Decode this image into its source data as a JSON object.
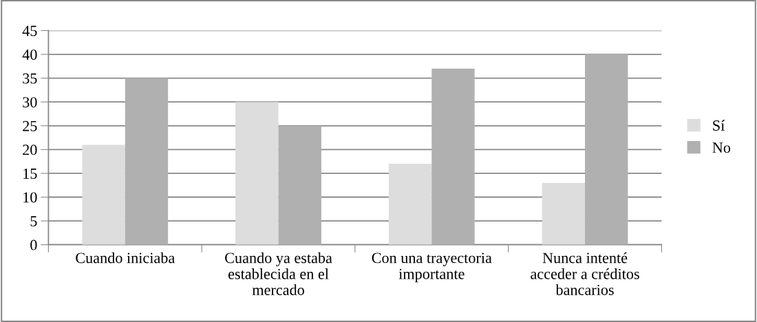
{
  "chart_data": {
    "type": "bar",
    "categories": [
      "Cuando iniciaba",
      "Cuando ya estaba establecida en el mercado",
      "Con una trayectoria importante",
      "Nunca intenté acceder a créditos bancarios"
    ],
    "series": [
      {
        "name": "Sí",
        "color": "#dddddd",
        "values": [
          21,
          30,
          17,
          13
        ]
      },
      {
        "name": "No",
        "color": "#b0b0b0",
        "values": [
          35,
          25,
          37,
          40
        ]
      }
    ],
    "ylim": [
      0,
      45
    ],
    "yticks": [
      0,
      5,
      10,
      15,
      20,
      25,
      30,
      35,
      40,
      45
    ],
    "grid": "y",
    "legend": "right"
  }
}
